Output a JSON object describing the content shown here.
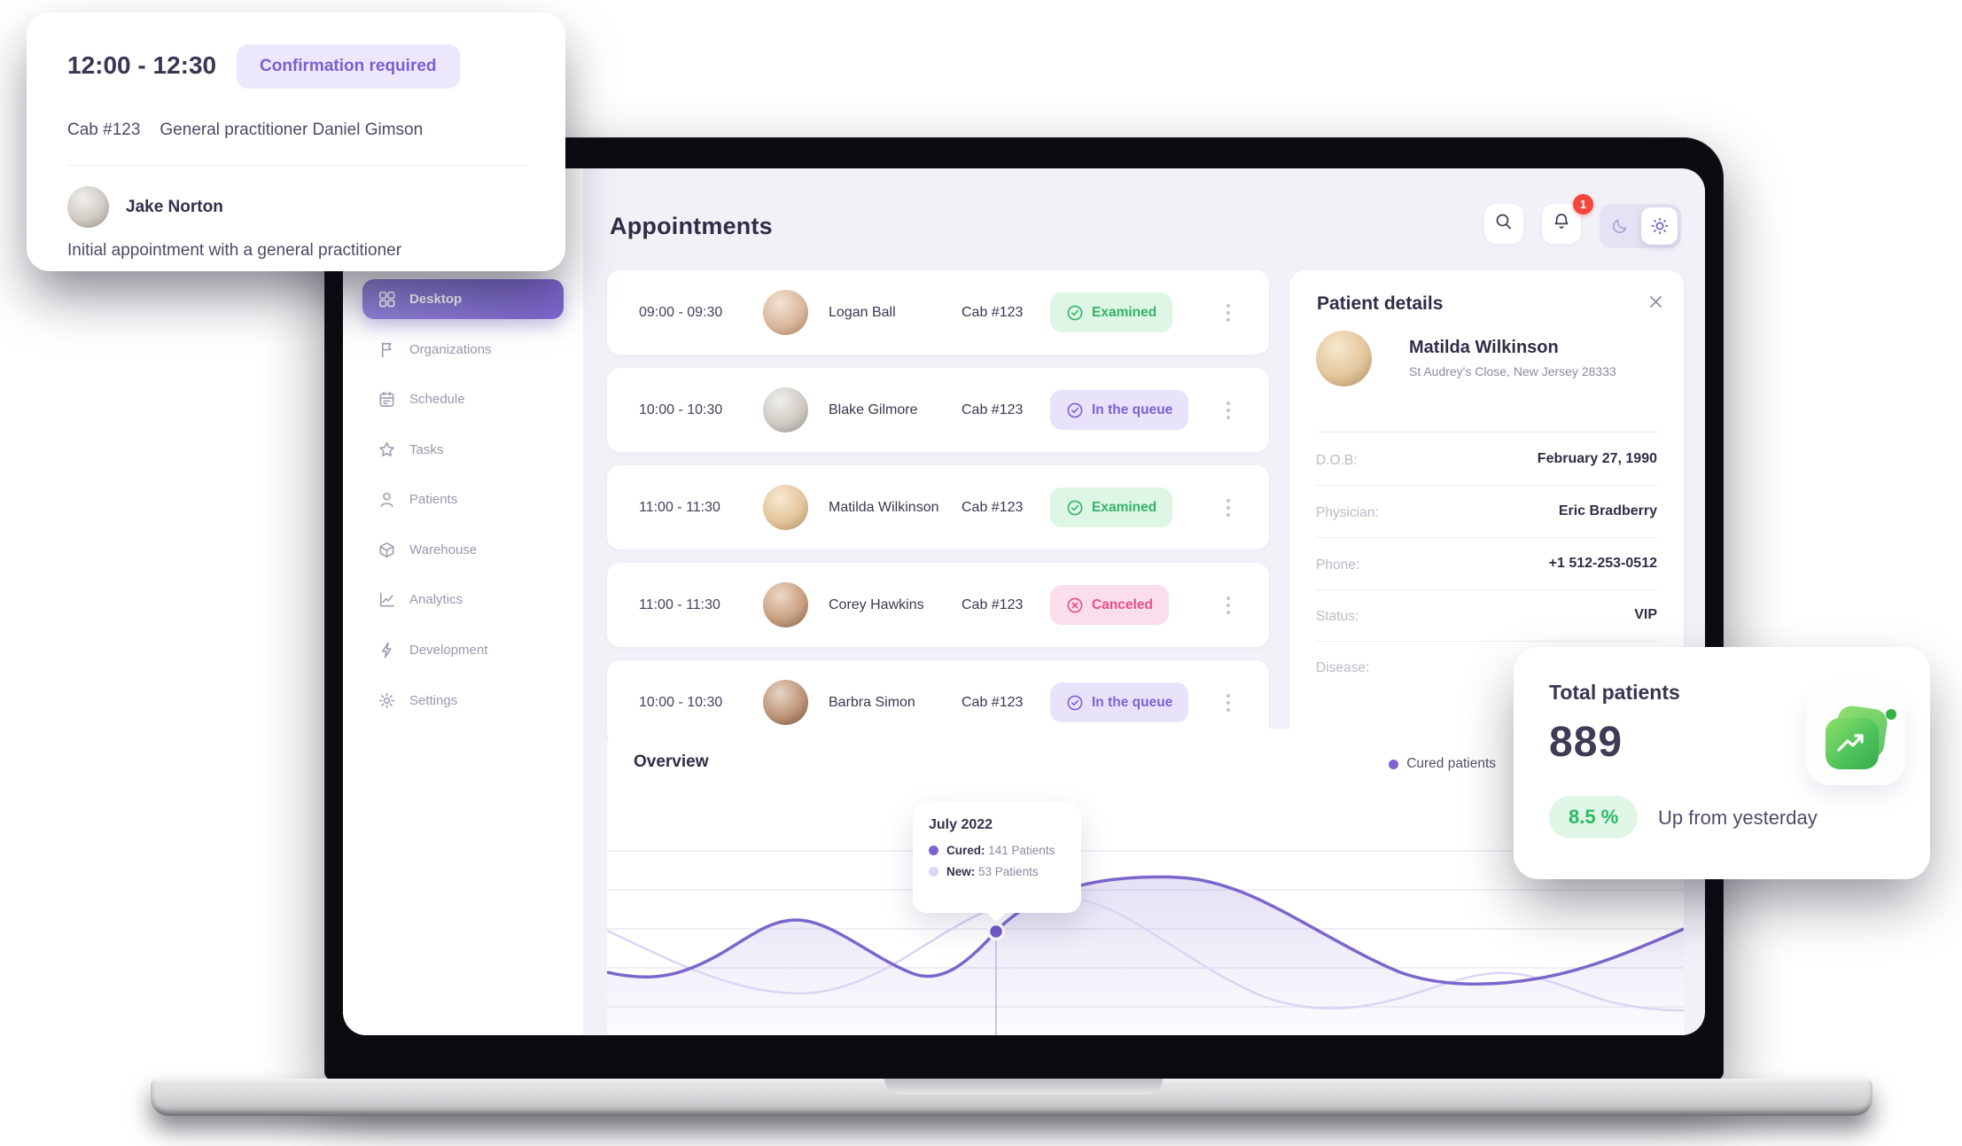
{
  "colors": {
    "accent_purple": "#7C63D2",
    "light_purple_series": "#DBD5F4",
    "app_background": "#F2F1F8",
    "examined_green": "#34B469",
    "queue_purple": "#7D62D3",
    "canceled_pink": "#E84E85",
    "notification_red": "#F4453E",
    "delta_green": "#29BA62"
  },
  "appointment_popup": {
    "time": "12:00 - 12:30",
    "badge": "Confirmation required",
    "cab": "Cab #123",
    "practitioner": "General practitioner Daniel Gimson",
    "patient_name": "Jake Norton",
    "description": "Initial appointment with a general practitioner"
  },
  "app": {
    "sidebar": {
      "items": [
        {
          "label": "Desktop",
          "icon": "grid-icon",
          "active": true
        },
        {
          "label": "Organizations",
          "icon": "flag-icon",
          "active": false
        },
        {
          "label": "Schedule",
          "icon": "calendar-icon",
          "active": false
        },
        {
          "label": "Tasks",
          "icon": "star-icon",
          "active": false
        },
        {
          "label": "Patients",
          "icon": "user-icon",
          "active": false
        },
        {
          "label": "Warehouse",
          "icon": "box-icon",
          "active": false
        },
        {
          "label": "Analytics",
          "icon": "chart-icon",
          "active": false
        },
        {
          "label": "Development",
          "icon": "bolt-icon",
          "active": false
        },
        {
          "label": "Settings",
          "icon": "gear-icon",
          "active": false
        }
      ]
    },
    "header": {
      "title": "Appointments",
      "notifications_badge": "1"
    },
    "appointments": {
      "rows": [
        {
          "time": "09:00 - 09:30",
          "name": "Logan Ball",
          "cab": "Cab #123",
          "status": "Examined",
          "status_type": "examined"
        },
        {
          "time": "10:00 - 10:30",
          "name": "Blake Gilmore",
          "cab": "Cab #123",
          "status": "In the queue",
          "status_type": "queue"
        },
        {
          "time": "11:00 - 11:30",
          "name": "Matilda Wilkinson",
          "cab": "Cab #123",
          "status": "Examined",
          "status_type": "examined"
        },
        {
          "time": "11:00 - 11:30",
          "name": "Corey Hawkins",
          "cab": "Cab #123",
          "status": "Canceled",
          "status_type": "canceled"
        },
        {
          "time": "10:00 - 10:30",
          "name": "Barbra Simon",
          "cab": "Cab #123",
          "status": "In the queue",
          "status_type": "queue"
        }
      ]
    },
    "patient_details": {
      "title": "Patient details",
      "name": "Matilda Wilkinson",
      "address": "St Audrey's Close, New Jersey 28333",
      "fields": [
        {
          "label": "D.O.B:",
          "value": "February 27, 1990"
        },
        {
          "label": "Physician:",
          "value": "Eric Bradberry"
        },
        {
          "label": "Phone:",
          "value": "+1 512-253-0512"
        },
        {
          "label": "Status:",
          "value": "VIP"
        },
        {
          "label": "Disease:",
          "value": ""
        }
      ]
    },
    "overview": {
      "title": "Overview",
      "legend": "Cured patients",
      "tooltip": {
        "title": "July 2022",
        "rows": [
          {
            "name": "Cured",
            "value": "141 Patients",
            "dot": "#7C63D2"
          },
          {
            "name": "New",
            "value": "53 Patients",
            "dot": "#DBD5F4"
          }
        ]
      }
    }
  },
  "total_patients_card": {
    "title": "Total patients",
    "value": "889",
    "delta": "8.5 %",
    "delta_note": "Up from yesterday"
  },
  "chart_data": {
    "type": "area",
    "title": "Overview",
    "legend_entries": [
      "Cured patients"
    ],
    "legend_position": "top-right",
    "grid": "horizontal-only",
    "x_axis": {
      "visible": false,
      "implied": "months of 2022"
    },
    "y_axis": {
      "visible": false,
      "unit": "patients"
    },
    "highlighted_point": {
      "x_label": "July 2022",
      "cured": 141,
      "new": 53
    },
    "series": [
      {
        "name": "Cured",
        "color": "#7C66CC",
        "fill": "rgba(124,102,204,0.16) fading to transparent",
        "x_norm": [
          0,
          0.17,
          0.28,
          0.36,
          0.53,
          0.77,
          1.0
        ],
        "patients_est": [
          85,
          150,
          80,
          141,
          215,
          75,
          140
        ]
      },
      {
        "name": "New",
        "color": "#DBD5F4",
        "x_norm": [
          0,
          0.22,
          0.41,
          0.64,
          0.79,
          1.0
        ],
        "patients_est": [
          110,
          40,
          120,
          30,
          65,
          35
        ]
      }
    ]
  }
}
